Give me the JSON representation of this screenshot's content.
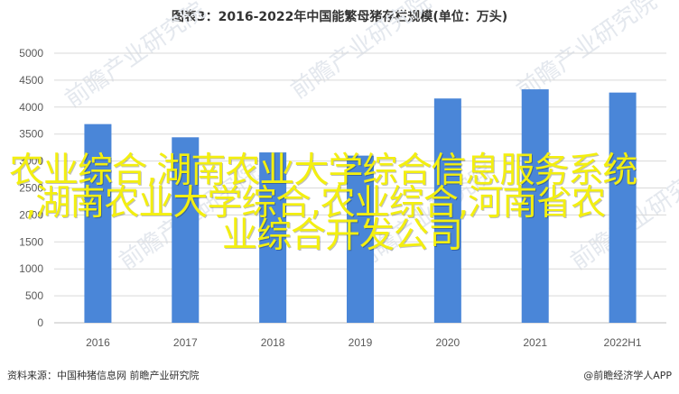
{
  "chart_data": {
    "type": "bar",
    "title": "图表3：2016-2022年中国能繁母猪存栏规模(单位：万头)",
    "categories": [
      "2016",
      "2017",
      "2018",
      "2019",
      "2020",
      "2021",
      "2022H1"
    ],
    "values": [
      3685,
      3440,
      3160,
      3100,
      4160,
      4330,
      4270
    ],
    "ylim": [
      0,
      5000
    ],
    "yticks": [
      0,
      500,
      1000,
      1500,
      2000,
      2500,
      3000,
      3500,
      4000,
      4500,
      5000
    ],
    "grid": true,
    "bar_color": "#4a86d8"
  },
  "overlay_text": [
    "农业综合,湖南农业大学综合信息服务系统",
    ",湖南农业大学综合,农业综合,河南省农",
    "业综合开发公司"
  ],
  "watermark": "前瞻产业研究院",
  "footer": {
    "source": "资料来源：中国种猪信息网 前瞻产业研究院",
    "brand": "@前瞻经济学人APP"
  }
}
